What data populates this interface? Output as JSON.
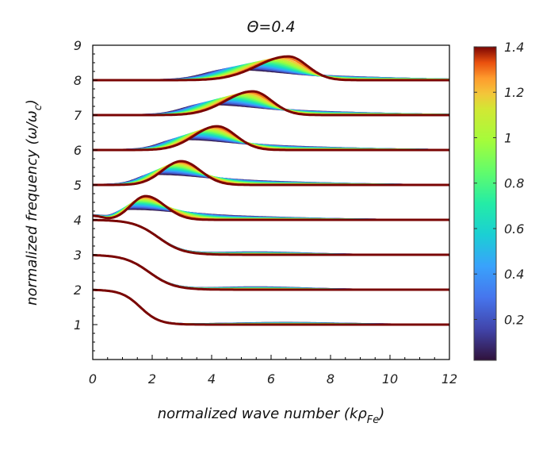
{
  "chart_data": {
    "type": "line",
    "title": "Θ=0.4",
    "xlabel": "normalized wave number (kρ",
    "xlabel_sub": "Fe",
    "xlabel_close": ")",
    "ylabel": "normalized frequency (ω/ω",
    "ylabel_sub": "c",
    "ylabel_close": ")",
    "xlim": [
      0,
      12
    ],
    "ylim": [
      0,
      9
    ],
    "x_ticks": [
      0,
      2,
      4,
      6,
      8,
      10,
      12
    ],
    "x_tick_labels": [
      "0",
      "2",
      "4",
      "6",
      "8",
      "10",
      "12"
    ],
    "y_ticks": [
      1,
      2,
      3,
      4,
      5,
      6,
      7,
      8,
      9
    ],
    "y_tick_labels": [
      "1",
      "2",
      "3",
      "4",
      "5",
      "6",
      "7",
      "8",
      "9"
    ],
    "harmonic_branches": [
      1,
      2,
      3,
      4,
      5,
      6,
      7,
      8
    ],
    "parameter_range": [
      0.02,
      1.4
    ],
    "curves_per_branch": 14,
    "colorbar": {
      "label": "",
      "min": 0.02,
      "max": 1.4,
      "ticks": [
        0.2,
        0.4,
        0.6,
        0.8,
        1,
        1.2,
        1.4
      ],
      "tick_labels": [
        "0.2",
        "0.4",
        "0.6",
        "0.8",
        "1",
        "1.2",
        "1.4"
      ],
      "colormap": "turbo"
    }
  }
}
